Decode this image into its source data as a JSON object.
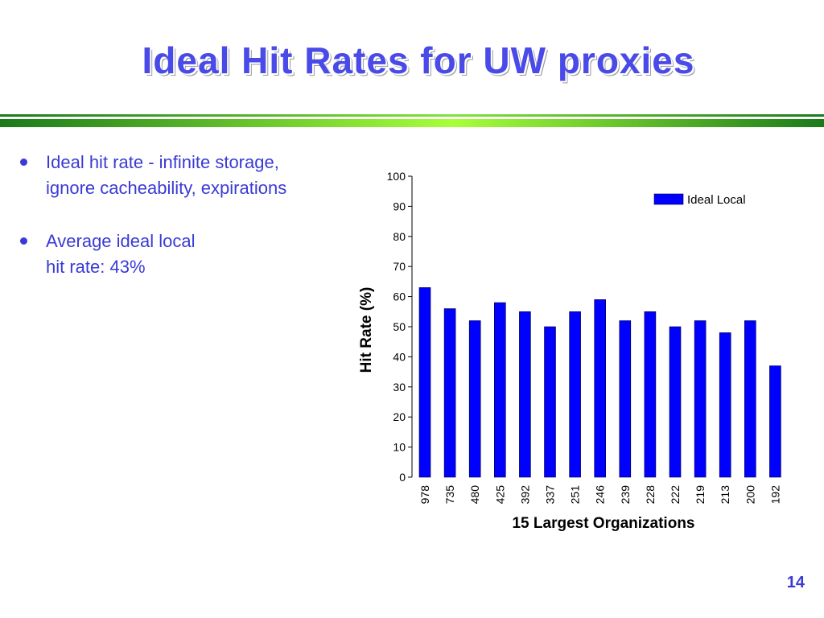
{
  "slide": {
    "title": "Ideal Hit Rates for UW proxies",
    "page_number": "14",
    "bullets": [
      {
        "lines": [
          "Ideal hit rate - infinite storage,",
          "ignore cacheability, expirations"
        ]
      },
      {
        "lines": [
          "Average ideal local",
          "hit rate:  43%"
        ]
      }
    ]
  },
  "colors": {
    "title": "#4a4ae8",
    "text": "#3a3ad6",
    "bar": "#0000ff",
    "rule": "#7fe53a"
  },
  "chart_data": {
    "type": "bar",
    "categories": [
      "978",
      "735",
      "480",
      "425",
      "392",
      "337",
      "251",
      "246",
      "239",
      "228",
      "222",
      "219",
      "213",
      "200",
      "192"
    ],
    "series": [
      {
        "name": "Ideal Local",
        "values": [
          63,
          56,
          52,
          58,
          55,
          50,
          55,
          59,
          52,
          55,
          50,
          52,
          48,
          52,
          37
        ]
      }
    ],
    "title": "",
    "xlabel": "15 Largest Organizations",
    "ylabel": "Hit Rate (%)",
    "ylim": [
      0,
      100
    ],
    "yticks": [
      0,
      10,
      20,
      30,
      40,
      50,
      60,
      70,
      80,
      90,
      100
    ],
    "grid": false,
    "legend": "top-right"
  }
}
